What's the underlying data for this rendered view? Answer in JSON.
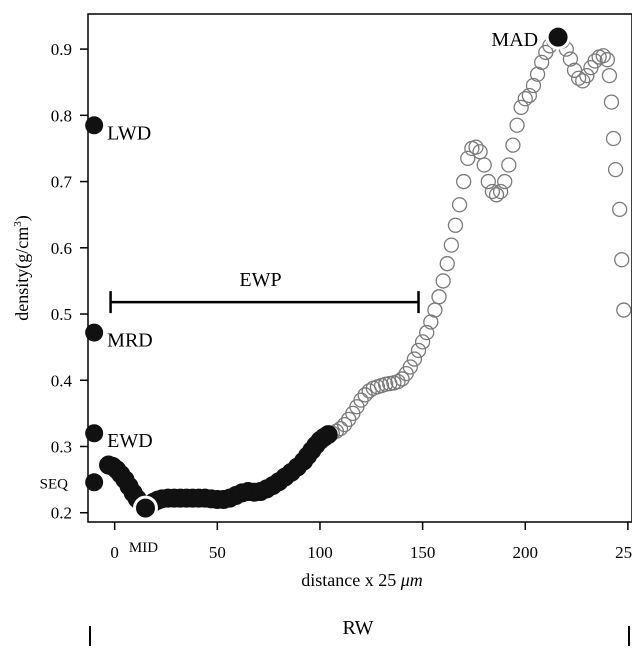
{
  "chart_data": {
    "type": "scatter",
    "title": "",
    "xlabel": "distance x 25",
    "xlabel_unit": "μm",
    "ylabel": "density(g/cm",
    "ylabel_sup": "3",
    "ylabel_close": ")",
    "xlim": [
      -13,
      252
    ],
    "ylim": [
      0.186,
      0.953
    ],
    "x_ticks": [
      0,
      50,
      100,
      150,
      200,
      250
    ],
    "x_tick_labels": [
      "0",
      "50",
      "100",
      "150",
      "200",
      "250"
    ],
    "y_ticks": [
      0.2,
      0.3,
      0.4,
      0.5,
      0.6,
      0.7,
      0.8,
      0.9
    ],
    "y_tick_labels": [
      "0.2",
      "0.3",
      "0.4",
      "0.5",
      "0.6",
      "0.7",
      "0.8",
      "0.9"
    ],
    "grid": false,
    "series": [
      {
        "marker": "filled-circle",
        "color": "#111111",
        "points": [
          [
            -3,
            0.272
          ],
          [
            -1,
            0.27
          ],
          [
            1,
            0.265
          ],
          [
            3,
            0.258
          ],
          [
            5,
            0.25
          ],
          [
            7,
            0.24
          ],
          [
            9,
            0.23
          ],
          [
            11,
            0.221
          ],
          [
            13,
            0.214
          ],
          [
            15,
            0.21
          ],
          [
            17,
            0.212
          ],
          [
            19,
            0.216
          ],
          [
            21,
            0.219
          ],
          [
            23,
            0.221
          ],
          [
            26,
            0.222
          ],
          [
            29,
            0.222
          ],
          [
            32,
            0.222
          ],
          [
            35,
            0.222
          ],
          [
            38,
            0.222
          ],
          [
            41,
            0.222
          ],
          [
            44,
            0.222
          ],
          [
            47,
            0.221
          ],
          [
            50,
            0.22
          ],
          [
            53,
            0.22
          ],
          [
            56,
            0.222
          ],
          [
            59,
            0.226
          ],
          [
            62,
            0.23
          ],
          [
            65,
            0.232
          ],
          [
            68,
            0.231
          ],
          [
            71,
            0.232
          ],
          [
            74,
            0.236
          ],
          [
            77,
            0.241
          ],
          [
            80,
            0.247
          ],
          [
            83,
            0.254
          ],
          [
            86,
            0.261
          ],
          [
            89,
            0.269
          ],
          [
            92,
            0.278
          ],
          [
            94,
            0.286
          ],
          [
            96,
            0.294
          ],
          [
            98,
            0.302
          ],
          [
            100,
            0.309
          ],
          [
            102,
            0.314
          ],
          [
            104,
            0.318
          ]
        ]
      },
      {
        "marker": "open-circle",
        "color": "#7a7a7a",
        "points": [
          [
            106,
            0.32
          ],
          [
            108,
            0.323
          ],
          [
            110,
            0.327
          ],
          [
            112,
            0.333
          ],
          [
            114,
            0.341
          ],
          [
            116,
            0.35
          ],
          [
            118,
            0.36
          ],
          [
            120,
            0.37
          ],
          [
            122,
            0.378
          ],
          [
            124,
            0.384
          ],
          [
            126,
            0.388
          ],
          [
            128,
            0.39
          ],
          [
            130,
            0.392
          ],
          [
            132,
            0.394
          ],
          [
            134,
            0.395
          ],
          [
            136,
            0.396
          ],
          [
            138,
            0.398
          ],
          [
            140,
            0.402
          ],
          [
            142,
            0.41
          ],
          [
            144,
            0.42
          ],
          [
            146,
            0.432
          ],
          [
            148,
            0.445
          ],
          [
            150,
            0.458
          ],
          [
            152,
            0.472
          ],
          [
            154,
            0.488
          ],
          [
            156,
            0.506
          ],
          [
            158,
            0.526
          ],
          [
            160,
            0.55
          ],
          [
            162,
            0.576
          ],
          [
            164,
            0.604
          ],
          [
            166,
            0.634
          ],
          [
            168,
            0.665
          ],
          [
            170,
            0.7
          ],
          [
            172,
            0.735
          ],
          [
            174,
            0.75
          ],
          [
            176,
            0.752
          ],
          [
            178,
            0.745
          ],
          [
            180,
            0.725
          ],
          [
            182,
            0.7
          ],
          [
            184,
            0.685
          ],
          [
            186,
            0.68
          ],
          [
            188,
            0.685
          ],
          [
            190,
            0.7
          ],
          [
            192,
            0.725
          ],
          [
            194,
            0.755
          ],
          [
            196,
            0.785
          ],
          [
            198,
            0.812
          ],
          [
            200,
            0.825
          ],
          [
            202,
            0.83
          ],
          [
            204,
            0.845
          ],
          [
            206,
            0.862
          ],
          [
            208,
            0.88
          ],
          [
            210,
            0.895
          ],
          [
            212,
            0.905
          ],
          [
            214,
            0.912
          ],
          [
            216,
            0.915
          ],
          [
            218,
            0.912
          ],
          [
            220,
            0.9
          ],
          [
            222,
            0.885
          ],
          [
            224,
            0.868
          ],
          [
            226,
            0.856
          ],
          [
            228,
            0.852
          ],
          [
            230,
            0.86
          ],
          [
            232,
            0.872
          ],
          [
            234,
            0.882
          ],
          [
            236,
            0.888
          ],
          [
            238,
            0.89
          ],
          [
            240,
            0.884
          ],
          [
            241,
            0.86
          ],
          [
            242,
            0.82
          ],
          [
            243,
            0.765
          ],
          [
            244,
            0.718
          ],
          [
            246,
            0.658
          ],
          [
            247,
            0.582
          ],
          [
            248,
            0.506
          ]
        ]
      }
    ],
    "markers": [
      {
        "label": "LWD",
        "x": -10,
        "y": 0.785
      },
      {
        "label": "MRD",
        "x": -10,
        "y": 0.472
      },
      {
        "label": "EWD",
        "x": -10,
        "y": 0.32
      },
      {
        "label": "SEQ",
        "x": -10,
        "y": 0.246
      },
      {
        "label": "MID",
        "x": 15,
        "y": 0.207,
        "highlight": true
      },
      {
        "label": "MAD",
        "x": 216,
        "y": 0.918,
        "highlight": true
      }
    ],
    "interval": {
      "label": "EWP",
      "x_start": -2,
      "x_end": 148,
      "y": 0.518
    },
    "below_axis_label": "RW"
  }
}
